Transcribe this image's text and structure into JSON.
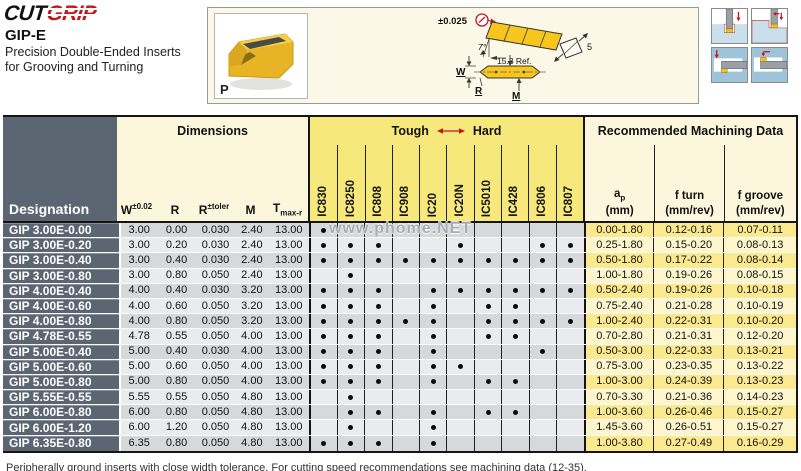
{
  "logo": {
    "cut": "CUT",
    "grip": "GRIP"
  },
  "page_header": {
    "series": "GIP-E",
    "line1": "Precision Double-Ended Inserts",
    "line2": "for Grooving and Turning",
    "photo_label": "P"
  },
  "drawing": {
    "tolerance": "±0.025",
    "angle": "7°",
    "reference": "15.3 Ref.",
    "dim_w": "W",
    "dim_r": "R",
    "dim_m": "M",
    "dim_t": "5"
  },
  "watermark": "www.phome.NET",
  "table": {
    "designation_header": "Designation",
    "groups": {
      "dimensions": "Dimensions",
      "tough": "Tough",
      "hard": "Hard",
      "machining": "Recommended  Machining Data"
    },
    "dim_headers": [
      {
        "base": "W",
        "sup": "±0.02"
      },
      {
        "base": "R"
      },
      {
        "base": "R",
        "sup": "±toler"
      },
      {
        "base": "M"
      },
      {
        "base": "T",
        "sub": "max-r"
      }
    ],
    "grades": [
      "IC830",
      "IC8250",
      "IC808",
      "IC908",
      "IC20",
      "IC20N",
      "IC5010",
      "IC428",
      "IC806",
      "IC807"
    ],
    "mach_headers": [
      {
        "base": "a",
        "sub": "p",
        "unit": "(mm)"
      },
      {
        "base": "f turn",
        "unit": "(mm/rev)"
      },
      {
        "base": "f groove",
        "unit": "(mm/rev)"
      }
    ],
    "rows": [
      {
        "designation": "GIP 3.00E-0.00",
        "dims": [
          "3.00",
          "0.00",
          "0.030",
          "2.40",
          "13.00"
        ],
        "dots": [
          1,
          0,
          0,
          0,
          0,
          0,
          0,
          0,
          0,
          0
        ],
        "mach": [
          "0.00-1.80",
          "0.12-0.16",
          "0.07-0.11"
        ]
      },
      {
        "designation": "GIP 3.00E-0.20",
        "dims": [
          "3.00",
          "0.20",
          "0.030",
          "2.40",
          "13.00"
        ],
        "dots": [
          1,
          1,
          1,
          0,
          0,
          1,
          0,
          0,
          1,
          1
        ],
        "mach": [
          "0.25-1.80",
          "0.15-0.20",
          "0.08-0.13"
        ]
      },
      {
        "designation": "GIP 3.00E-0.40",
        "dims": [
          "3.00",
          "0.40",
          "0.030",
          "2.40",
          "13.00"
        ],
        "dots": [
          1,
          1,
          1,
          1,
          1,
          1,
          1,
          1,
          1,
          1
        ],
        "mach": [
          "0.50-1.80",
          "0.17-0.22",
          "0.08-0.14"
        ]
      },
      {
        "designation": "GIP 3.00E-0.80",
        "dims": [
          "3.00",
          "0.80",
          "0.050",
          "2.40",
          "13.00"
        ],
        "dots": [
          0,
          1,
          0,
          0,
          0,
          0,
          0,
          0,
          0,
          0
        ],
        "mach": [
          "1.00-1.80",
          "0.19-0.26",
          "0.08-0.15"
        ]
      },
      {
        "designation": "GIP 4.00E-0.40",
        "dims": [
          "4.00",
          "0.40",
          "0.030",
          "3.20",
          "13.00"
        ],
        "dots": [
          1,
          1,
          1,
          0,
          1,
          1,
          1,
          1,
          1,
          1
        ],
        "mach": [
          "0.50-2.40",
          "0.19-0.26",
          "0.10-0.18"
        ]
      },
      {
        "designation": "GIP 4.00E-0.60",
        "dims": [
          "4.00",
          "0.60",
          "0.050",
          "3.20",
          "13.00"
        ],
        "dots": [
          1,
          1,
          1,
          0,
          1,
          0,
          1,
          1,
          0,
          0
        ],
        "mach": [
          "0.75-2.40",
          "0.21-0.28",
          "0.10-0.19"
        ]
      },
      {
        "designation": "GIP 4.00E-0.80",
        "dims": [
          "4.00",
          "0.80",
          "0.050",
          "3.20",
          "13.00"
        ],
        "dots": [
          1,
          1,
          1,
          1,
          1,
          0,
          1,
          1,
          1,
          1
        ],
        "mach": [
          "1.00-2.40",
          "0.22-0.31",
          "0.10-0.20"
        ]
      },
      {
        "designation": "GIP 4.78E-0.55",
        "dims": [
          "4.78",
          "0.55",
          "0.050",
          "4.00",
          "13.00"
        ],
        "dots": [
          1,
          1,
          1,
          0,
          1,
          0,
          1,
          1,
          0,
          0
        ],
        "mach": [
          "0.70-2.80",
          "0.21-0.31",
          "0.12-0.20"
        ]
      },
      {
        "designation": "GIP 5.00E-0.40",
        "dims": [
          "5.00",
          "0.40",
          "0.030",
          "4.00",
          "13.00"
        ],
        "dots": [
          1,
          1,
          1,
          0,
          1,
          0,
          0,
          0,
          1,
          0
        ],
        "mach": [
          "0.50-3.00",
          "0.22-0.33",
          "0.13-0.21"
        ]
      },
      {
        "designation": "GIP 5.00E-0.60",
        "dims": [
          "5.00",
          "0.60",
          "0.050",
          "4.00",
          "13.00"
        ],
        "dots": [
          1,
          1,
          1,
          0,
          1,
          1,
          0,
          0,
          0,
          0
        ],
        "mach": [
          "0.75-3.00",
          "0.23-0.35",
          "0.13-0.22"
        ]
      },
      {
        "designation": "GIP 5.00E-0.80",
        "dims": [
          "5.00",
          "0.80",
          "0.050",
          "4.00",
          "13.00"
        ],
        "dots": [
          1,
          1,
          1,
          0,
          1,
          0,
          1,
          1,
          0,
          0
        ],
        "mach": [
          "1.00-3.00",
          "0.24-0.39",
          "0.13-0.23"
        ]
      },
      {
        "designation": "GIP 5.55E-0.55",
        "dims": [
          "5.55",
          "0.55",
          "0.050",
          "4.80",
          "13.00"
        ],
        "dots": [
          0,
          1,
          0,
          0,
          0,
          0,
          0,
          0,
          0,
          0
        ],
        "mach": [
          "0.70-3.30",
          "0.21-0.36",
          "0.14-0.23"
        ]
      },
      {
        "designation": "GIP 6.00E-0.80",
        "dims": [
          "6.00",
          "0.80",
          "0.050",
          "4.80",
          "13.00"
        ],
        "dots": [
          0,
          1,
          1,
          0,
          1,
          0,
          1,
          1,
          0,
          0
        ],
        "mach": [
          "1.00-3.60",
          "0.26-0.46",
          "0.15-0.27"
        ]
      },
      {
        "designation": "GIP 6.00E-1.20",
        "dims": [
          "6.00",
          "1.20",
          "0.050",
          "4.80",
          "13.00"
        ],
        "dots": [
          0,
          1,
          0,
          0,
          1,
          0,
          0,
          0,
          0,
          0
        ],
        "mach": [
          "1.45-3.60",
          "0.26-0.51",
          "0.15-0.27"
        ]
      },
      {
        "designation": "GIP 6.35E-0.80",
        "dims": [
          "6.35",
          "0.80",
          "0.050",
          "4.80",
          "13.00"
        ],
        "dots": [
          1,
          1,
          1,
          0,
          1,
          0,
          0,
          0,
          0,
          0
        ],
        "mach": [
          "1.00-3.80",
          "0.27-0.49",
          "0.16-0.29"
        ]
      }
    ]
  },
  "footnote": "Peripherally ground inserts with close width tolerance. For cutting speed recommendations see machining data (12-35)."
}
